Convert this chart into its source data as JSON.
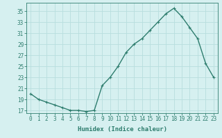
{
  "x": [
    0,
    1,
    2,
    3,
    4,
    5,
    6,
    7,
    8,
    9,
    10,
    11,
    12,
    13,
    14,
    15,
    16,
    17,
    18,
    19,
    20,
    21,
    22,
    23
  ],
  "y": [
    20.0,
    19.0,
    18.5,
    18.0,
    17.5,
    17.0,
    17.0,
    16.8,
    17.0,
    21.5,
    23.0,
    25.0,
    27.5,
    29.0,
    30.0,
    31.5,
    33.0,
    34.5,
    35.5,
    34.0,
    32.0,
    30.0,
    25.5,
    23.0
  ],
  "line_color": "#2e7d6e",
  "marker": "+",
  "marker_size": 3,
  "bg_color": "#d6f0f0",
  "grid_color": "#b8dede",
  "xlabel": "Humidex (Indice chaleur)",
  "ylabel_ticks": [
    17,
    19,
    21,
    23,
    25,
    27,
    29,
    31,
    33,
    35
  ],
  "ylim": [
    16.5,
    36.5
  ],
  "xlim": [
    -0.5,
    23.5
  ],
  "axis_color": "#2e7d6e",
  "tick_color": "#2e7d6e",
  "label_fontsize": 6.5,
  "tick_fontsize": 5.5
}
